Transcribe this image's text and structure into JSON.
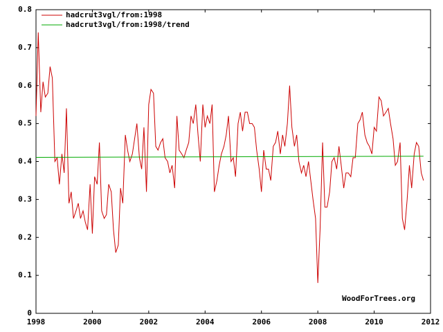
{
  "chart_data": {
    "type": "line",
    "annotation": "WoodForTrees.org",
    "legend": "top-left",
    "xlim": [
      1998,
      2012
    ],
    "xticks": [
      1998,
      2000,
      2002,
      2004,
      2006,
      2008,
      2010,
      2012
    ],
    "ylim": [
      0,
      0.8
    ],
    "yticks": [
      0,
      0.1,
      0.2,
      0.3,
      0.4,
      0.5,
      0.6,
      0.7,
      0.8
    ],
    "series": [
      {
        "name": "hadcrut3vgl/from:1998",
        "color": "#cc0000",
        "x": [
          1998,
          1998.08,
          1998.17,
          1998.25,
          1998.33,
          1998.42,
          1998.5,
          1998.58,
          1998.67,
          1998.75,
          1998.83,
          1998.92,
          1999,
          1999.08,
          1999.17,
          1999.25,
          1999.33,
          1999.42,
          1999.5,
          1999.58,
          1999.67,
          1999.75,
          1999.83,
          1999.92,
          2000,
          2000.08,
          2000.17,
          2000.25,
          2000.33,
          2000.42,
          2000.5,
          2000.58,
          2000.67,
          2000.75,
          2000.83,
          2000.92,
          2001,
          2001.08,
          2001.17,
          2001.25,
          2001.33,
          2001.42,
          2001.5,
          2001.58,
          2001.67,
          2001.75,
          2001.83,
          2001.92,
          2002,
          2002.08,
          2002.17,
          2002.25,
          2002.33,
          2002.42,
          2002.5,
          2002.58,
          2002.67,
          2002.75,
          2002.83,
          2002.92,
          2003,
          2003.08,
          2003.17,
          2003.25,
          2003.33,
          2003.42,
          2003.5,
          2003.58,
          2003.67,
          2003.75,
          2003.83,
          2003.92,
          2004,
          2004.08,
          2004.17,
          2004.25,
          2004.33,
          2004.42,
          2004.5,
          2004.58,
          2004.67,
          2004.75,
          2004.83,
          2004.92,
          2005,
          2005.08,
          2005.17,
          2005.25,
          2005.33,
          2005.42,
          2005.5,
          2005.58,
          2005.67,
          2005.75,
          2005.83,
          2005.92,
          2006,
          2006.08,
          2006.17,
          2006.25,
          2006.33,
          2006.42,
          2006.5,
          2006.58,
          2006.67,
          2006.75,
          2006.83,
          2006.92,
          2007,
          2007.08,
          2007.17,
          2007.25,
          2007.33,
          2007.42,
          2007.5,
          2007.58,
          2007.67,
          2007.75,
          2007.83,
          2007.92,
          2008,
          2008.08,
          2008.17,
          2008.25,
          2008.33,
          2008.42,
          2008.5,
          2008.58,
          2008.67,
          2008.75,
          2008.83,
          2008.92,
          2009,
          2009.08,
          2009.17,
          2009.25,
          2009.33,
          2009.42,
          2009.5,
          2009.58,
          2009.67,
          2009.75,
          2009.83,
          2009.92,
          2010,
          2010.08,
          2010.17,
          2010.25,
          2010.33,
          2010.42,
          2010.5,
          2010.58,
          2010.67,
          2010.75,
          2010.83,
          2010.92,
          2011,
          2011.08,
          2011.17,
          2011.25,
          2011.33,
          2011.42,
          2011.5,
          2011.58,
          2011.67,
          2011.75
        ],
        "values": [
          0.52,
          0.74,
          0.53,
          0.61,
          0.57,
          0.58,
          0.65,
          0.62,
          0.4,
          0.41,
          0.34,
          0.42,
          0.37,
          0.54,
          0.29,
          0.32,
          0.25,
          0.27,
          0.29,
          0.25,
          0.27,
          0.24,
          0.22,
          0.34,
          0.21,
          0.36,
          0.34,
          0.45,
          0.27,
          0.25,
          0.26,
          0.34,
          0.32,
          0.22,
          0.16,
          0.18,
          0.33,
          0.29,
          0.47,
          0.43,
          0.4,
          0.42,
          0.46,
          0.5,
          0.41,
          0.38,
          0.49,
          0.32,
          0.55,
          0.59,
          0.58,
          0.44,
          0.43,
          0.45,
          0.46,
          0.41,
          0.4,
          0.37,
          0.39,
          0.33,
          0.52,
          0.43,
          0.42,
          0.41,
          0.43,
          0.45,
          0.52,
          0.5,
          0.55,
          0.47,
          0.4,
          0.55,
          0.49,
          0.52,
          0.5,
          0.55,
          0.32,
          0.35,
          0.39,
          0.42,
          0.44,
          0.47,
          0.52,
          0.4,
          0.41,
          0.36,
          0.5,
          0.53,
          0.48,
          0.53,
          0.53,
          0.5,
          0.5,
          0.49,
          0.43,
          0.38,
          0.32,
          0.43,
          0.38,
          0.38,
          0.35,
          0.44,
          0.45,
          0.48,
          0.42,
          0.47,
          0.44,
          0.5,
          0.6,
          0.49,
          0.44,
          0.47,
          0.4,
          0.37,
          0.39,
          0.36,
          0.4,
          0.35,
          0.3,
          0.25,
          0.08,
          0.22,
          0.45,
          0.28,
          0.28,
          0.32,
          0.4,
          0.41,
          0.38,
          0.44,
          0.39,
          0.33,
          0.37,
          0.37,
          0.36,
          0.41,
          0.41,
          0.5,
          0.51,
          0.53,
          0.47,
          0.45,
          0.44,
          0.42,
          0.49,
          0.48,
          0.57,
          0.56,
          0.52,
          0.53,
          0.54,
          0.5,
          0.46,
          0.39,
          0.4,
          0.45,
          0.25,
          0.22,
          0.3,
          0.39,
          0.33,
          0.42,
          0.45,
          0.44,
          0.37,
          0.35
        ]
      },
      {
        "name": "hadcrut3vgl/from:1998/trend",
        "color": "#00aa00",
        "x": [
          1998,
          2011.75
        ],
        "values": [
          0.411,
          0.414
        ]
      }
    ]
  }
}
